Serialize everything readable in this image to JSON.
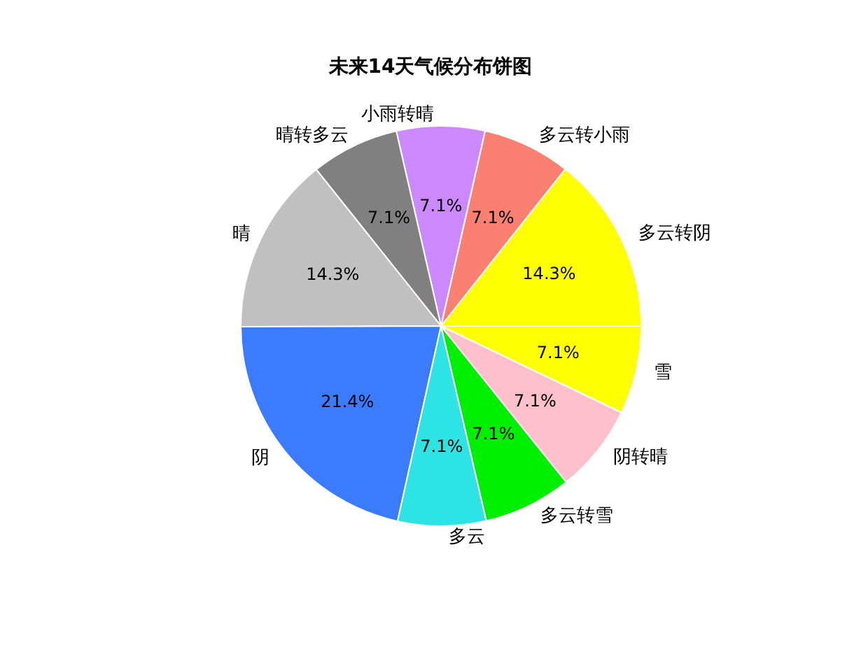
{
  "chart_data": {
    "type": "pie",
    "title": "未来14天气候分布饼图",
    "categories": [
      "多云转阴",
      "多云转小雨",
      "小雨转晴",
      "晴转多云",
      "晴",
      "阴",
      "多云",
      "多云转雪",
      "阴转晴",
      "雪"
    ],
    "values": [
      14.3,
      7.1,
      7.1,
      7.1,
      14.3,
      21.4,
      7.1,
      7.1,
      7.1,
      7.1
    ],
    "colors": [
      "#ffff00",
      "#fa8072",
      "#cc88ff",
      "#808080",
      "#c0c0c0",
      "#3a7bff",
      "#2ee3e3",
      "#00ee00",
      "#ffc0cb",
      "#ffff00"
    ],
    "value_labels": [
      "14.3%",
      "7.1%",
      "7.1%",
      "7.1%",
      "14.3%",
      "21.4%",
      "7.1%",
      "7.1%",
      "7.1%",
      "7.1%"
    ],
    "legend": false
  }
}
